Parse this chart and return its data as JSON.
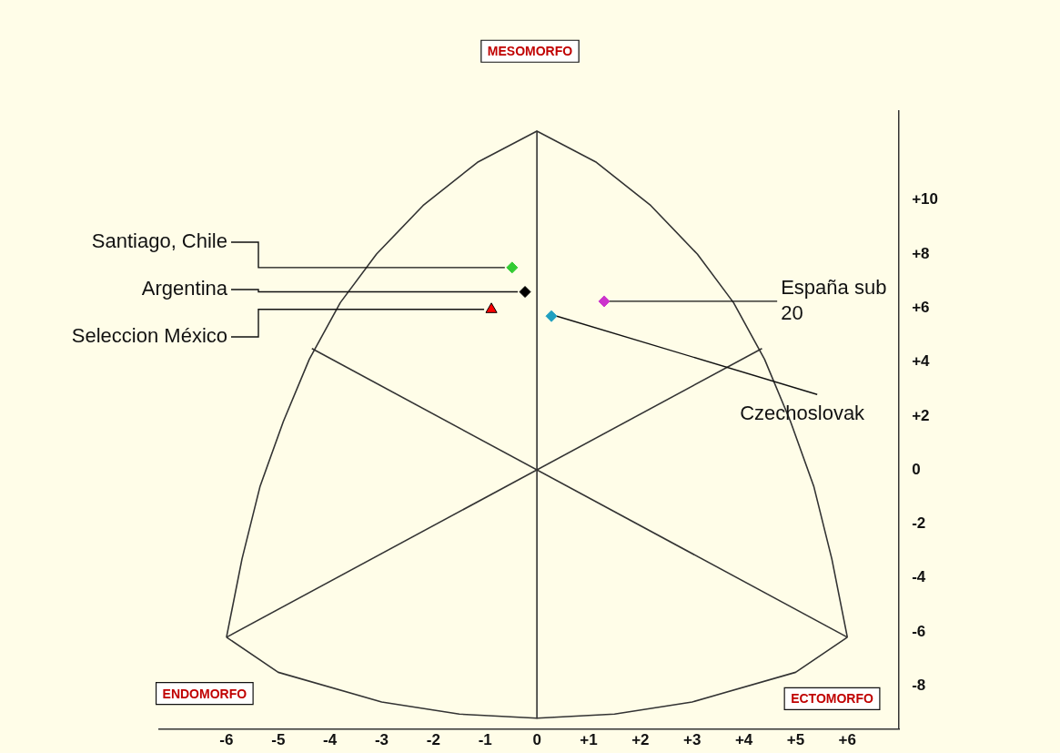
{
  "chart_data": {
    "type": "scatter",
    "xlim": [
      -7.3,
      7
    ],
    "ylim": [
      -9.6,
      13.3
    ],
    "xticks": [
      -6,
      -5,
      -4,
      -3,
      -2,
      -1,
      0,
      {
        "value": 1,
        "label": "+1"
      },
      {
        "value": 2,
        "label": "+2"
      },
      {
        "value": 3,
        "label": "+3"
      },
      {
        "value": 4,
        "label": "+4"
      },
      {
        "value": 5,
        "label": "+5"
      },
      {
        "value": 6,
        "label": "+6"
      }
    ],
    "yticks": [
      -8,
      -6,
      -4,
      -2,
      0,
      {
        "value": 2,
        "label": "+2"
      },
      {
        "value": 4,
        "label": "+4"
      },
      {
        "value": 6,
        "label": "+6"
      },
      {
        "value": 8,
        "label": "+8"
      },
      {
        "value": 10,
        "label": "+10"
      }
    ],
    "grid": false,
    "legend": false,
    "annotations": [
      "MESOMORFO",
      "ENDOMORFO",
      "ECTOMORFO"
    ],
    "series": [
      {
        "type": "line",
        "color": "#333333",
        "marker": "none",
        "line_style": "solid",
        "x": [
          0,
          -1.15,
          -2.2,
          -3.1,
          -3.8,
          -4.4,
          -4.9,
          -5.35,
          -5.7,
          -6
        ],
        "values": [
          12.56,
          11.4,
          9.8,
          8,
          6.2,
          4.1,
          1.8,
          -0.6,
          -3.3,
          -6.2
        ]
      },
      {
        "type": "line",
        "color": "#333333",
        "marker": "none",
        "line_style": "solid",
        "x": [
          0,
          1.15,
          2.2,
          3.1,
          3.8,
          4.4,
          4.9,
          5.35,
          5.7,
          6
        ],
        "values": [
          12.56,
          11.4,
          9.8,
          8,
          6.2,
          4.1,
          1.8,
          -0.6,
          -3.3,
          -6.2
        ]
      },
      {
        "type": "line",
        "color": "#333333",
        "marker": "none",
        "line_style": "solid",
        "x": [
          -6,
          -5,
          -3,
          -1.5,
          0,
          1.5,
          3,
          5,
          6
        ],
        "values": [
          -6.2,
          -7.5,
          -8.6,
          -9.05,
          -9.2,
          -9.05,
          -8.6,
          -7.5,
          -6.2
        ]
      },
      {
        "type": "line",
        "color": "#333333",
        "marker": "none",
        "line_style": "solid",
        "x": [
          0,
          0
        ],
        "values": [
          12.56,
          -9.2
        ]
      },
      {
        "type": "line",
        "color": "#333333",
        "marker": "none",
        "line_style": "solid",
        "x": [
          -4.35,
          6
        ],
        "values": [
          4.5,
          -6.2
        ]
      },
      {
        "type": "line",
        "color": "#333333",
        "marker": "none",
        "line_style": "solid",
        "x": [
          4.35,
          -6
        ],
        "values": [
          4.5,
          -6.2
        ]
      },
      {
        "name": "Santiago, Chile",
        "color": "#33cc33",
        "marker": "diamond",
        "x": [
          -0.48
        ],
        "values": [
          7.5
        ]
      },
      {
        "name": "Argentina",
        "color": "#000000",
        "marker": "diamond",
        "x": [
          -0.23
        ],
        "values": [
          6.6
        ]
      },
      {
        "name": "Seleccion México",
        "color": "#ff0000",
        "marker": "triangle",
        "x": [
          -0.88
        ],
        "values": [
          5.95
        ]
      },
      {
        "name": "España sub 20",
        "color": "#cc33cc",
        "marker": "diamond",
        "x": [
          1.3
        ],
        "values": [
          6.25
        ]
      },
      {
        "name": "Czechoslovak",
        "color": "#1fa0c0",
        "marker": "diamond",
        "x": [
          0.28
        ],
        "values": [
          5.7
        ]
      }
    ]
  }
}
